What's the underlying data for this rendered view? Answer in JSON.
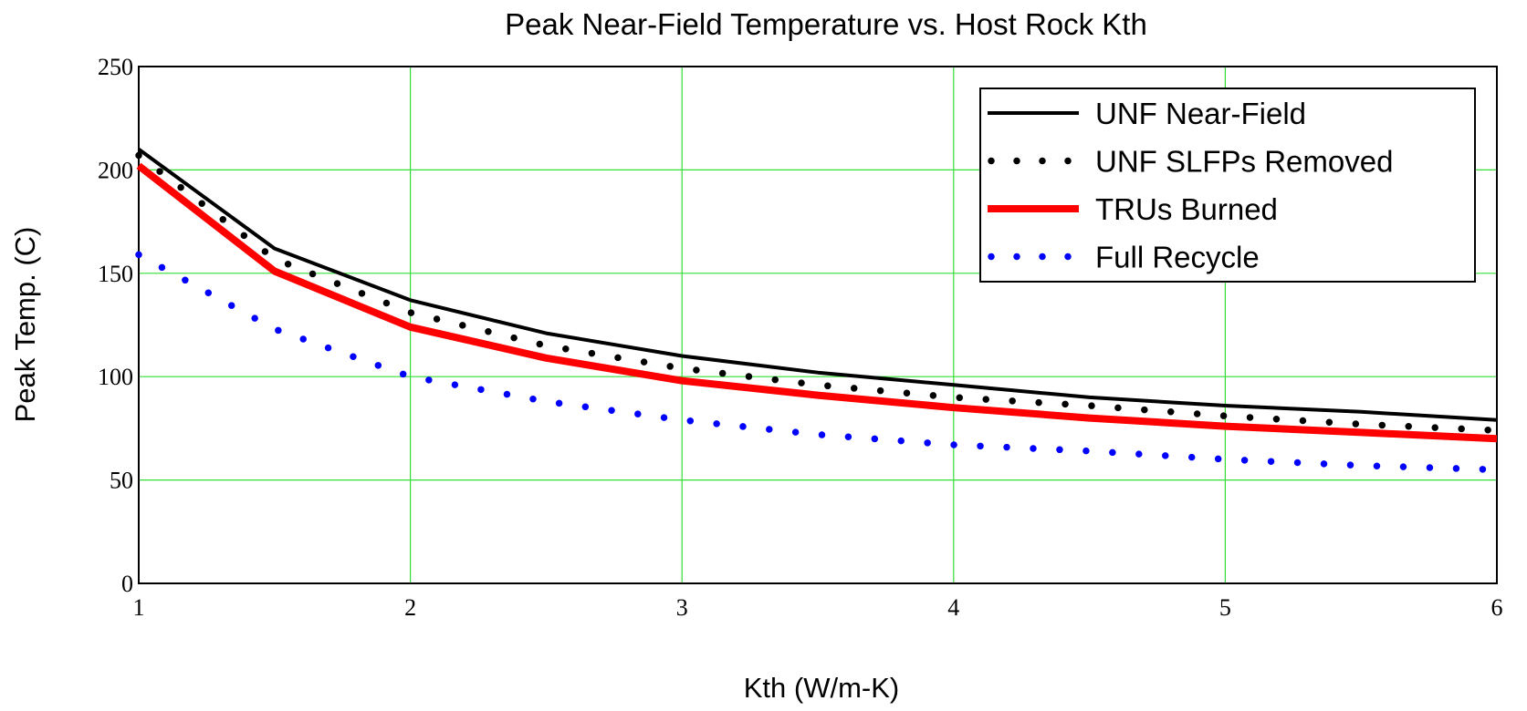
{
  "chart_data": {
    "type": "line",
    "title": "Peak Near-Field Temperature vs. Host Rock Kth",
    "xlabel": "Kth (W/m-K)",
    "ylabel": "Peak Temp. (C)",
    "xlim": [
      1,
      6
    ],
    "ylim": [
      0,
      250
    ],
    "x_ticks": [
      "1",
      "2",
      "3",
      "4",
      "5",
      "6"
    ],
    "y_ticks": [
      "0",
      "50",
      "100",
      "150",
      "200",
      "250"
    ],
    "grid": true,
    "legend_position": "top-right",
    "x": [
      1,
      1.5,
      2,
      2.5,
      3,
      3.5,
      4,
      4.5,
      5,
      5.5,
      6
    ],
    "series": [
      {
        "name": "UNF Near-Field",
        "style": "solid",
        "color": "#000000",
        "values": [
          210,
          162,
          137,
          121,
          110,
          102,
          96,
          90,
          86,
          83,
          79
        ]
      },
      {
        "name": "UNF SLFPs Removed",
        "style": "dotted",
        "color": "#000000",
        "values": [
          207,
          157,
          131,
          115,
          104,
          96,
          90,
          86,
          81,
          77,
          74
        ]
      },
      {
        "name": "TRUs Burned",
        "style": "solid-thick",
        "color": "#ff0000",
        "values": [
          202,
          151,
          124,
          109,
          98,
          91,
          85,
          80,
          76,
          73,
          70
        ]
      },
      {
        "name": "Full Recycle",
        "style": "dotted",
        "color": "#0000ff",
        "values": [
          159,
          123,
          100,
          88,
          79,
          72,
          67,
          64,
          60,
          57,
          55
        ]
      }
    ]
  },
  "colors": {
    "grid": "#33dd33",
    "axes": "#000000",
    "background": "#ffffff"
  }
}
